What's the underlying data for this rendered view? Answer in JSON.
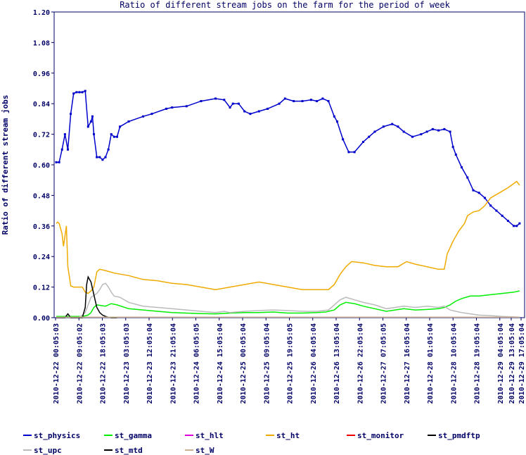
{
  "chart_data": {
    "type": "line",
    "title": "Ratio of different stream jobs on the farm for the period of week",
    "ylabel": "Ratio of different stream jobs",
    "xlabel": "",
    "ylim": [
      0,
      1.2
    ],
    "yticks": [
      "0.00",
      "0.12",
      "0.24",
      "0.36",
      "0.48",
      "0.60",
      "0.72",
      "0.84",
      "0.96",
      "1.08",
      "1.20"
    ],
    "x_tick_labels": [
      "2010-12-22 00:05:03",
      "2010-12-22 09:05:02",
      "2010-12-22 18:05:03",
      "2010-12-23 03:05:03",
      "2010-12-23 12:05:04",
      "2010-12-23 21:05:04",
      "2010-12-24 06:05:05",
      "2010-12-24 15:05:04",
      "2010-12-25 00:05:04",
      "2010-12-25 09:05:04",
      "2010-12-25 19:05:05",
      "2010-12-26 04:05:04",
      "2010-12-26 13:05:04",
      "2010-12-26 22:05:04",
      "2010-12-27 07:05:05",
      "2010-12-27 16:05:04",
      "2010-12-28 01:05:04",
      "2010-12-28 10:05:04",
      "2010-12-28 19:05:04",
      "2010-12-29 04:05:04",
      "2010-12-29 13:05:04",
      "2010-12-29 17:05:04"
    ],
    "x_range_hours": [
      0,
      161
    ],
    "grid": false,
    "legend_placement": "bottom",
    "series": [
      {
        "name": "st_physics",
        "color": "#0000cc",
        "marker": "dot",
        "points": [
          [
            0,
            0.61
          ],
          [
            1,
            0.61
          ],
          [
            2,
            0.66
          ],
          [
            3,
            0.72
          ],
          [
            4,
            0.66
          ],
          [
            5,
            0.8
          ],
          [
            6,
            0.88
          ],
          [
            7,
            0.885
          ],
          [
            8,
            0.885
          ],
          [
            9,
            0.885
          ],
          [
            10,
            0.89
          ],
          [
            11,
            0.75
          ],
          [
            12,
            0.77
          ],
          [
            12.5,
            0.79
          ],
          [
            13,
            0.72
          ],
          [
            14,
            0.63
          ],
          [
            15,
            0.63
          ],
          [
            16,
            0.62
          ],
          [
            17,
            0.63
          ],
          [
            18,
            0.66
          ],
          [
            19,
            0.72
          ],
          [
            20,
            0.71
          ],
          [
            21,
            0.71
          ],
          [
            22,
            0.75
          ],
          [
            25,
            0.77
          ],
          [
            30,
            0.79
          ],
          [
            33,
            0.8
          ],
          [
            38,
            0.82
          ],
          [
            40,
            0.825
          ],
          [
            45,
            0.83
          ],
          [
            50,
            0.85
          ],
          [
            55,
            0.86
          ],
          [
            58,
            0.855
          ],
          [
            60,
            0.825
          ],
          [
            61,
            0.84
          ],
          [
            63,
            0.84
          ],
          [
            65,
            0.81
          ],
          [
            67,
            0.8
          ],
          [
            70,
            0.81
          ],
          [
            73,
            0.82
          ],
          [
            77,
            0.84
          ],
          [
            79,
            0.86
          ],
          [
            82,
            0.85
          ],
          [
            85,
            0.85
          ],
          [
            88,
            0.855
          ],
          [
            90,
            0.85
          ],
          [
            92,
            0.86
          ],
          [
            94,
            0.85
          ],
          [
            96,
            0.79
          ],
          [
            97,
            0.77
          ],
          [
            99,
            0.7
          ],
          [
            101,
            0.65
          ],
          [
            103,
            0.65
          ],
          [
            106,
            0.69
          ],
          [
            108,
            0.71
          ],
          [
            110,
            0.73
          ],
          [
            113,
            0.75
          ],
          [
            116,
            0.76
          ],
          [
            118,
            0.75
          ],
          [
            120,
            0.73
          ],
          [
            123,
            0.71
          ],
          [
            126,
            0.72
          ],
          [
            128,
            0.73
          ],
          [
            130,
            0.74
          ],
          [
            132,
            0.735
          ],
          [
            134,
            0.74
          ],
          [
            136,
            0.73
          ],
          [
            137,
            0.67
          ],
          [
            138,
            0.64
          ],
          [
            140,
            0.59
          ],
          [
            142,
            0.55
          ],
          [
            144,
            0.5
          ],
          [
            146,
            0.49
          ],
          [
            148,
            0.47
          ],
          [
            150,
            0.44
          ],
          [
            152,
            0.42
          ],
          [
            154,
            0.4
          ],
          [
            156,
            0.38
          ],
          [
            158,
            0.36
          ],
          [
            159,
            0.36
          ],
          [
            160,
            0.37
          ]
        ]
      },
      {
        "name": "st_gamma",
        "color": "#00ee00",
        "marker": "none",
        "points": [
          [
            0,
            0.005
          ],
          [
            5,
            0.005
          ],
          [
            9,
            0.005
          ],
          [
            11,
            0.01
          ],
          [
            12,
            0.02
          ],
          [
            13,
            0.04
          ],
          [
            14,
            0.05
          ],
          [
            17,
            0.045
          ],
          [
            19,
            0.055
          ],
          [
            21,
            0.05
          ],
          [
            25,
            0.035
          ],
          [
            30,
            0.03
          ],
          [
            35,
            0.025
          ],
          [
            40,
            0.02
          ],
          [
            45,
            0.018
          ],
          [
            50,
            0.016
          ],
          [
            55,
            0.015
          ],
          [
            60,
            0.018
          ],
          [
            65,
            0.02
          ],
          [
            70,
            0.02
          ],
          [
            75,
            0.022
          ],
          [
            80,
            0.018
          ],
          [
            85,
            0.018
          ],
          [
            90,
            0.02
          ],
          [
            93,
            0.022
          ],
          [
            96,
            0.03
          ],
          [
            98,
            0.05
          ],
          [
            100,
            0.06
          ],
          [
            103,
            0.055
          ],
          [
            106,
            0.045
          ],
          [
            110,
            0.035
          ],
          [
            114,
            0.025
          ],
          [
            117,
            0.03
          ],
          [
            120,
            0.035
          ],
          [
            124,
            0.03
          ],
          [
            128,
            0.032
          ],
          [
            132,
            0.035
          ],
          [
            134,
            0.04
          ],
          [
            136,
            0.05
          ],
          [
            138,
            0.065
          ],
          [
            140,
            0.075
          ],
          [
            143,
            0.085
          ],
          [
            146,
            0.085
          ],
          [
            150,
            0.09
          ],
          [
            154,
            0.095
          ],
          [
            158,
            0.1
          ],
          [
            160,
            0.105
          ]
        ]
      },
      {
        "name": "st_hlt",
        "color": "#dd00dd",
        "marker": "none",
        "points": []
      },
      {
        "name": "st_ht",
        "color": "#f0aa00",
        "marker": "none",
        "points": [
          [
            0,
            0.37
          ],
          [
            0.5,
            0.375
          ],
          [
            1,
            0.37
          ],
          [
            2,
            0.33
          ],
          [
            2.5,
            0.28
          ],
          [
            3.5,
            0.36
          ],
          [
            4,
            0.2
          ],
          [
            5,
            0.125
          ],
          [
            6,
            0.12
          ],
          [
            8,
            0.12
          ],
          [
            9,
            0.12
          ],
          [
            10,
            0.1
          ],
          [
            11,
            0.095
          ],
          [
            12,
            0.105
          ],
          [
            13,
            0.12
          ],
          [
            14,
            0.18
          ],
          [
            15,
            0.19
          ],
          [
            17,
            0.185
          ],
          [
            20,
            0.175
          ],
          [
            25,
            0.165
          ],
          [
            30,
            0.15
          ],
          [
            35,
            0.145
          ],
          [
            40,
            0.135
          ],
          [
            45,
            0.13
          ],
          [
            50,
            0.12
          ],
          [
            55,
            0.11
          ],
          [
            60,
            0.12
          ],
          [
            65,
            0.13
          ],
          [
            70,
            0.14
          ],
          [
            75,
            0.13
          ],
          [
            80,
            0.12
          ],
          [
            85,
            0.11
          ],
          [
            90,
            0.11
          ],
          [
            94,
            0.11
          ],
          [
            96,
            0.13
          ],
          [
            98,
            0.17
          ],
          [
            100,
            0.2
          ],
          [
            102,
            0.22
          ],
          [
            106,
            0.215
          ],
          [
            110,
            0.205
          ],
          [
            114,
            0.2
          ],
          [
            118,
            0.2
          ],
          [
            121,
            0.22
          ],
          [
            124,
            0.21
          ],
          [
            128,
            0.2
          ],
          [
            130,
            0.195
          ],
          [
            132,
            0.19
          ],
          [
            134,
            0.19
          ],
          [
            135,
            0.25
          ],
          [
            137,
            0.3
          ],
          [
            139,
            0.34
          ],
          [
            141,
            0.37
          ],
          [
            142,
            0.4
          ],
          [
            144,
            0.415
          ],
          [
            146,
            0.42
          ],
          [
            148,
            0.44
          ],
          [
            150,
            0.47
          ],
          [
            153,
            0.49
          ],
          [
            156,
            0.51
          ],
          [
            159,
            0.535
          ],
          [
            160,
            0.52
          ]
        ]
      },
      {
        "name": "st_monitor",
        "color": "#ee0000",
        "marker": "none",
        "points": []
      },
      {
        "name": "st_pmdftp",
        "color": "#000000",
        "marker": "none",
        "points": []
      },
      {
        "name": "st_upc",
        "color": "#bbbbbb",
        "marker": "none",
        "points": [
          [
            0,
            0.002
          ],
          [
            8,
            0.002
          ],
          [
            9,
            0.01
          ],
          [
            10,
            0.02
          ],
          [
            11,
            0.05
          ],
          [
            12,
            0.08
          ],
          [
            14,
            0.095
          ],
          [
            15,
            0.11
          ],
          [
            16,
            0.13
          ],
          [
            17,
            0.135
          ],
          [
            18,
            0.12
          ],
          [
            19,
            0.1
          ],
          [
            20,
            0.085
          ],
          [
            22,
            0.08
          ],
          [
            25,
            0.06
          ],
          [
            30,
            0.045
          ],
          [
            35,
            0.04
          ],
          [
            40,
            0.035
          ],
          [
            45,
            0.03
          ],
          [
            50,
            0.025
          ],
          [
            55,
            0.02
          ],
          [
            58,
            0.025
          ],
          [
            60,
            0.02
          ],
          [
            65,
            0.025
          ],
          [
            70,
            0.028
          ],
          [
            75,
            0.03
          ],
          [
            80,
            0.028
          ],
          [
            85,
            0.025
          ],
          [
            90,
            0.025
          ],
          [
            94,
            0.03
          ],
          [
            96,
            0.05
          ],
          [
            98,
            0.07
          ],
          [
            100,
            0.08
          ],
          [
            103,
            0.07
          ],
          [
            106,
            0.06
          ],
          [
            110,
            0.05
          ],
          [
            114,
            0.035
          ],
          [
            117,
            0.04
          ],
          [
            120,
            0.045
          ],
          [
            124,
            0.04
          ],
          [
            128,
            0.045
          ],
          [
            132,
            0.04
          ],
          [
            134,
            0.045
          ],
          [
            136,
            0.03
          ],
          [
            138,
            0.025
          ],
          [
            140,
            0.02
          ],
          [
            143,
            0.015
          ],
          [
            146,
            0.01
          ],
          [
            150,
            0.008
          ],
          [
            154,
            0.005
          ],
          [
            158,
            0.003
          ],
          [
            160,
            0.002
          ]
        ]
      },
      {
        "name": "st_mtd",
        "color": "#000000",
        "marker": "none",
        "points": [
          [
            0,
            0
          ],
          [
            3,
            0.0
          ],
          [
            4,
            0.015
          ],
          [
            5,
            0.0
          ],
          [
            9,
            0.0
          ],
          [
            10,
            0.04
          ],
          [
            10.5,
            0.13
          ],
          [
            11,
            0.16
          ],
          [
            12,
            0.14
          ],
          [
            13,
            0.09
          ],
          [
            14,
            0.04
          ],
          [
            15,
            0.02
          ],
          [
            16,
            0.01
          ],
          [
            17,
            0.005
          ],
          [
            18,
            0.002
          ],
          [
            19,
            0.0
          ],
          [
            21,
            0.0
          ]
        ]
      },
      {
        "name": "st_W",
        "color": "#c8b090",
        "marker": "none",
        "points": [
          [
            0,
            0.002
          ],
          [
            40,
            0.002
          ],
          [
            80,
            0.002
          ],
          [
            120,
            0.002
          ],
          [
            160,
            0.002
          ]
        ]
      }
    ]
  }
}
